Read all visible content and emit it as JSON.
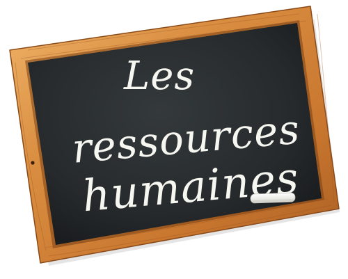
{
  "image": {
    "subject": "slate-chalkboard",
    "colors": {
      "frame_light": "#e7a55a",
      "frame_mid": "#c97a33",
      "frame_dark": "#9b5521",
      "board": "#2a2e30",
      "board_shade": "#1a1d1f",
      "chalk": "#f7f7f2",
      "background": "#ffffff"
    }
  },
  "chalkboard": {
    "lines": [
      "Les",
      "ressources",
      "humaines"
    ]
  }
}
